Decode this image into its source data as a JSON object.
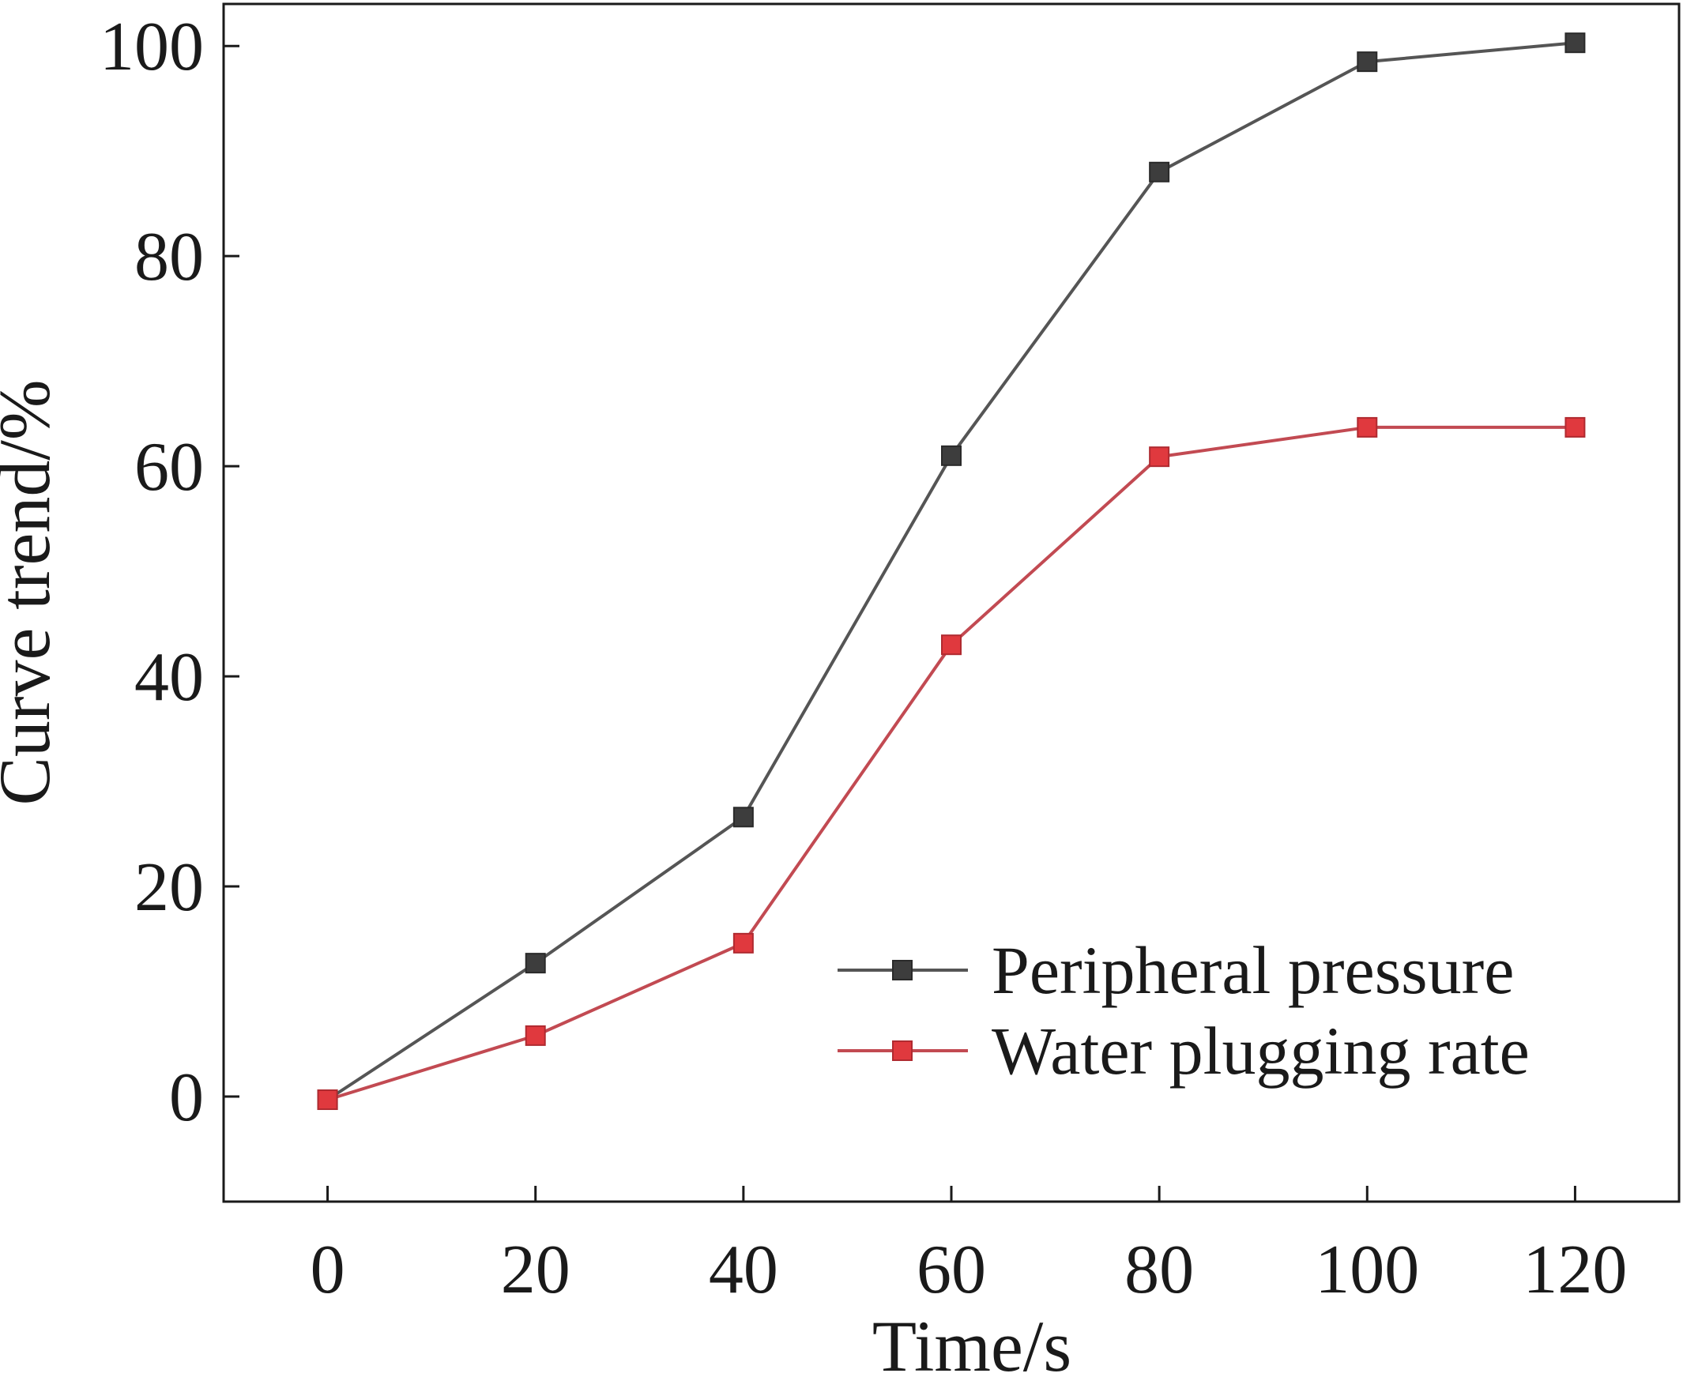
{
  "chart_data": {
    "type": "line",
    "title": "",
    "xlabel": "Time/s",
    "ylabel": "Curve trend/%",
    "xlim": [
      -10,
      130
    ],
    "ylim": [
      -10,
      104
    ],
    "x_ticks": [
      0,
      20,
      40,
      60,
      80,
      100,
      120
    ],
    "y_ticks": [
      0,
      20,
      40,
      60,
      80,
      100
    ],
    "x": [
      0,
      20,
      40,
      60,
      80,
      100,
      120
    ],
    "series": [
      {
        "name": "Peripheral pressure",
        "color": "#3d3d3d",
        "line_color": "#555555",
        "marker": "square",
        "values": [
          -0.3,
          12.7,
          26.6,
          61.0,
          88.0,
          98.5,
          100.3
        ]
      },
      {
        "name": "Water plugging rate",
        "color": "#e0393e",
        "line_color": "#c24a52",
        "marker": "square",
        "values": [
          -0.3,
          5.8,
          14.6,
          43.0,
          60.9,
          63.7,
          63.7
        ]
      }
    ],
    "grid": false,
    "legend_position": "lower-right"
  }
}
